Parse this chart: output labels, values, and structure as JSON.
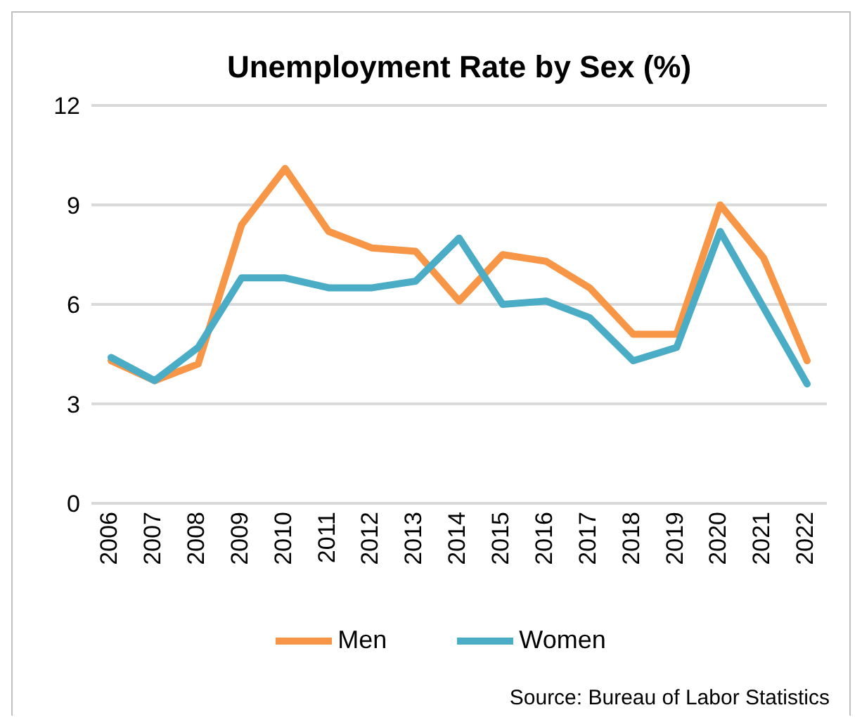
{
  "chart_data": {
    "type": "line",
    "title": "Unemployment Rate by Sex (%)",
    "categories": [
      "2006",
      "2007",
      "2008",
      "2009",
      "2010",
      "2011",
      "2012",
      "2013",
      "2014",
      "2015",
      "2016",
      "2017",
      "2018",
      "2019",
      "2020",
      "2021",
      "2022"
    ],
    "series": [
      {
        "name": "Men",
        "color": "#f79646",
        "values": [
          4.3,
          3.7,
          4.2,
          8.4,
          10.1,
          8.2,
          7.7,
          7.6,
          6.1,
          7.5,
          7.3,
          6.5,
          5.1,
          5.1,
          9.0,
          7.4,
          4.3
        ]
      },
      {
        "name": "Women",
        "color": "#4bacc6",
        "values": [
          4.4,
          3.7,
          4.7,
          6.8,
          6.8,
          6.5,
          6.5,
          6.7,
          8.0,
          6.0,
          6.1,
          5.6,
          4.3,
          4.7,
          8.2,
          5.9,
          3.6
        ]
      }
    ],
    "ylim": [
      0,
      12
    ],
    "yticks": [
      0,
      3,
      6,
      9,
      12
    ],
    "grid": "y",
    "legend": "bottom",
    "marker": "none",
    "line_style": "solid",
    "annotations": [
      "Source: Bureau of Labor Statistics"
    ]
  }
}
